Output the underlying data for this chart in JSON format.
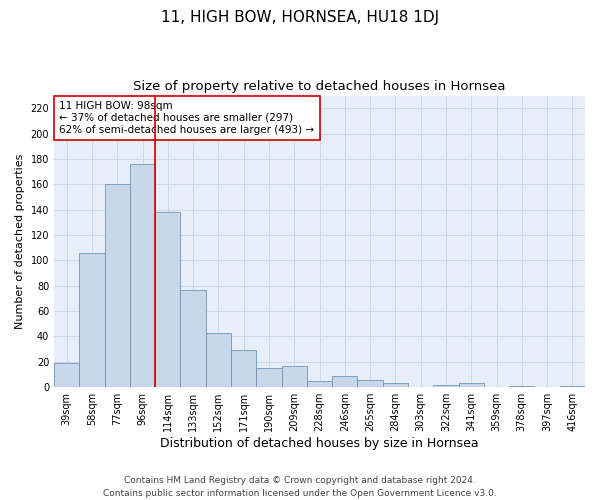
{
  "title": "11, HIGH BOW, HORNSEA, HU18 1DJ",
  "subtitle": "Size of property relative to detached houses in Hornsea",
  "xlabel": "Distribution of detached houses by size in Hornsea",
  "ylabel": "Number of detached properties",
  "categories": [
    "39sqm",
    "58sqm",
    "77sqm",
    "96sqm",
    "114sqm",
    "133sqm",
    "152sqm",
    "171sqm",
    "190sqm",
    "209sqm",
    "228sqm",
    "246sqm",
    "265sqm",
    "284sqm",
    "303sqm",
    "322sqm",
    "341sqm",
    "359sqm",
    "378sqm",
    "397sqm",
    "416sqm"
  ],
  "values": [
    19,
    106,
    160,
    176,
    138,
    77,
    43,
    29,
    15,
    17,
    5,
    9,
    6,
    3,
    0,
    2,
    3,
    0,
    1,
    0,
    1
  ],
  "bar_color": "#c8d8e8",
  "bar_edge_color": "#5a8ab0",
  "bar_linewidth": 0.5,
  "vline_x_index": 3,
  "vline_color": "#cc0000",
  "annotation_text": "11 HIGH BOW: 98sqm\n← 37% of detached houses are smaller (297)\n62% of semi-detached houses are larger (493) →",
  "annotation_box_color": "white",
  "annotation_box_edge_color": "#cc0000",
  "ylim": [
    0,
    230
  ],
  "yticks": [
    0,
    20,
    40,
    60,
    80,
    100,
    120,
    140,
    160,
    180,
    200,
    220
  ],
  "grid_color": "#d0d8e8",
  "background_color": "#e8eef8",
  "footer_text": "Contains HM Land Registry data © Crown copyright and database right 2024.\nContains public sector information licensed under the Open Government Licence v3.0.",
  "title_fontsize": 11,
  "subtitle_fontsize": 9.5,
  "xlabel_fontsize": 9,
  "ylabel_fontsize": 8,
  "tick_fontsize": 7,
  "annotation_fontsize": 7.5,
  "footer_fontsize": 6.5
}
